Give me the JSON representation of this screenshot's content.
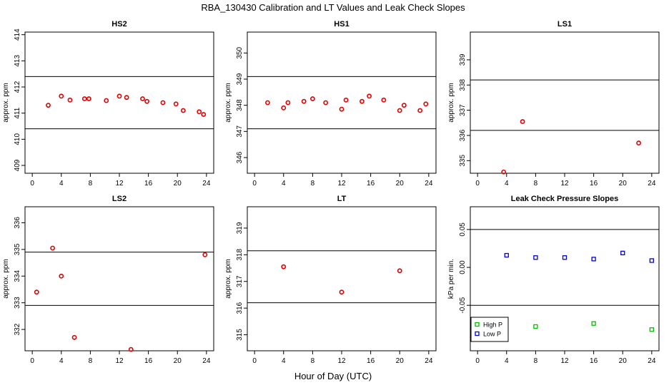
{
  "figure": {
    "title": "RBA_130430  Calibration and LT Values and Leak Check Slopes",
    "xlabel": "Hour of Day (UTC)"
  },
  "chart_data": [
    {
      "type": "scatter",
      "title": "HS2",
      "ylabel": "approx. ppm",
      "xlim": [
        -1,
        25
      ],
      "ylim": [
        408.7,
        414.1
      ],
      "xticks": [
        "0",
        "4",
        "8",
        "12",
        "16",
        "20",
        "24"
      ],
      "yticks": [
        "409",
        "410",
        "411",
        "412",
        "413",
        "414"
      ],
      "hlines": [
        412.4,
        410.4
      ],
      "series": [
        {
          "color": "#e00000",
          "marker": "circle",
          "x": [
            2.2,
            4.0,
            5.2,
            7.2,
            7.8,
            10.2,
            12.0,
            13.0,
            15.2,
            15.8,
            18.0,
            19.8,
            20.8,
            23.0,
            23.6
          ],
          "y": [
            411.3,
            411.65,
            411.5,
            411.55,
            411.55,
            411.48,
            411.65,
            411.6,
            411.55,
            411.45,
            411.4,
            411.35,
            411.1,
            411.05,
            410.95
          ]
        }
      ]
    },
    {
      "type": "scatter",
      "title": "HS1",
      "ylabel": "approx. ppm",
      "xlim": [
        -1,
        25
      ],
      "ylim": [
        345.4,
        350.8
      ],
      "xticks": [
        "0",
        "4",
        "8",
        "12",
        "16",
        "20",
        "24"
      ],
      "yticks": [
        "346",
        "347",
        "348",
        "349",
        "350"
      ],
      "hlines": [
        349.1,
        347.1
      ],
      "series": [
        {
          "color": "#e00000",
          "marker": "circle",
          "x": [
            1.8,
            4.0,
            4.6,
            6.8,
            8.0,
            9.8,
            12.0,
            12.6,
            14.8,
            15.8,
            17.8,
            20.0,
            20.6,
            22.8,
            23.6
          ],
          "y": [
            348.1,
            347.9,
            348.1,
            348.15,
            348.25,
            348.1,
            347.85,
            348.2,
            348.15,
            348.35,
            348.2,
            347.8,
            348.0,
            347.8,
            348.05
          ]
        }
      ]
    },
    {
      "type": "scatter",
      "title": "LS1",
      "ylabel": "approx. ppm",
      "xlim": [
        -1,
        25
      ],
      "ylim": [
        334.5,
        340.1
      ],
      "xticks": [
        "0",
        "4",
        "8",
        "12",
        "16",
        "20",
        "24"
      ],
      "yticks": [
        "335",
        "336",
        "337",
        "338",
        "339"
      ],
      "hlines": [
        338.2,
        336.2
      ],
      "series": [
        {
          "color": "#e00000",
          "marker": "circle",
          "x": [
            3.6,
            6.2,
            22.2
          ],
          "y": [
            334.55,
            336.55,
            335.7
          ]
        }
      ]
    },
    {
      "type": "scatter",
      "title": "LS2",
      "ylabel": "approx. ppm",
      "xlim": [
        -1,
        25
      ],
      "ylim": [
        331.2,
        336.6
      ],
      "xticks": [
        "0",
        "4",
        "8",
        "12",
        "16",
        "20",
        "24"
      ],
      "yticks": [
        "332",
        "333",
        "334",
        "335",
        "336"
      ],
      "hlines": [
        334.9,
        332.9
      ],
      "series": [
        {
          "color": "#e00000",
          "marker": "circle",
          "x": [
            0.6,
            2.8,
            4.0,
            5.8,
            13.6,
            23.8
          ],
          "y": [
            333.4,
            335.05,
            334.0,
            331.7,
            331.25,
            334.8
          ]
        }
      ]
    },
    {
      "type": "scatter",
      "title": "LT",
      "ylabel": "approx. ppm",
      "xlim": [
        -1,
        25
      ],
      "ylim": [
        314.4,
        319.8
      ],
      "xticks": [
        "0",
        "4",
        "8",
        "12",
        "16",
        "20",
        "24"
      ],
      "yticks": [
        "315",
        "316",
        "317",
        "318",
        "319"
      ],
      "hlines": [
        318.15,
        316.2
      ],
      "series": [
        {
          "color": "#e00000",
          "marker": "circle",
          "x": [
            4.0,
            12.0,
            20.0
          ],
          "y": [
            317.55,
            316.6,
            317.4
          ]
        }
      ]
    },
    {
      "type": "scatter",
      "title": "Leak Check Pressure Slopes",
      "ylabel": "kPa per min.",
      "xlim": [
        -1,
        25
      ],
      "ylim": [
        -0.11,
        0.08
      ],
      "xticks": [
        "0",
        "4",
        "8",
        "12",
        "16",
        "20",
        "24"
      ],
      "yticks": [
        "-0.05",
        "0.00",
        "0.05"
      ],
      "hlines": [
        0.05,
        -0.05
      ],
      "legend": {
        "position": "bottom-left",
        "entries": [
          "High P",
          "Low P"
        ]
      },
      "series": [
        {
          "name": "High P",
          "color": "#00c000",
          "marker": "square",
          "x": [
            8.0,
            16.0,
            24.0
          ],
          "y": [
            -0.078,
            -0.074,
            -0.082
          ]
        },
        {
          "name": "Low P",
          "color": "#0000e0",
          "marker": "square",
          "x": [
            4.0,
            8.0,
            12.0,
            16.0,
            20.0,
            24.0
          ],
          "y": [
            0.016,
            0.013,
            0.013,
            0.011,
            0.019,
            0.009
          ]
        }
      ]
    }
  ]
}
